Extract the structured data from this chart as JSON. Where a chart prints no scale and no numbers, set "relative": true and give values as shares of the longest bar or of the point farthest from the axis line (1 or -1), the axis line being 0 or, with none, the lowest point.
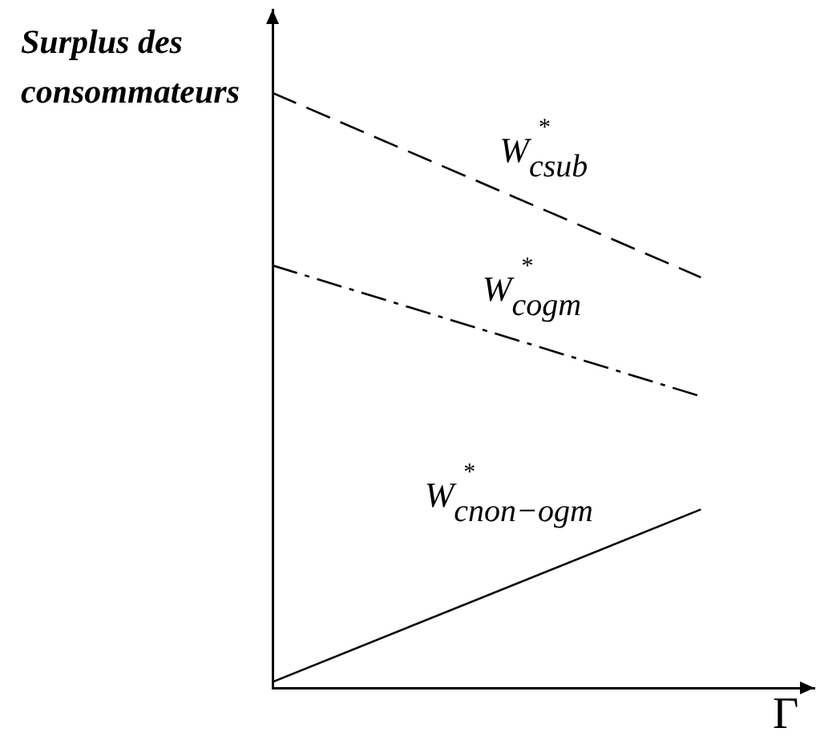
{
  "chart_data": {
    "type": "line",
    "relative": true,
    "xlabel": "Γ",
    "ylabel": "Surplus des consommateurs",
    "categories": [
      null,
      null
    ],
    "series": [
      {
        "name": "W$^{*}$$_{csub}$",
        "color": "#000000",
        "line_style": "dashed",
        "values": [
          1,
          0.69
        ]
      },
      {
        "name": "W$^{*}$$_{cogm}$",
        "color": "#000000",
        "line_style": "dashdot",
        "values": [
          0.71,
          0.49
        ]
      },
      {
        "name": "W$^{*}$$_{cnon−ogm}$",
        "color": "#000000",
        "line_style": "solid",
        "values": [
          0.01,
          0.3
        ]
      }
    ]
  }
}
